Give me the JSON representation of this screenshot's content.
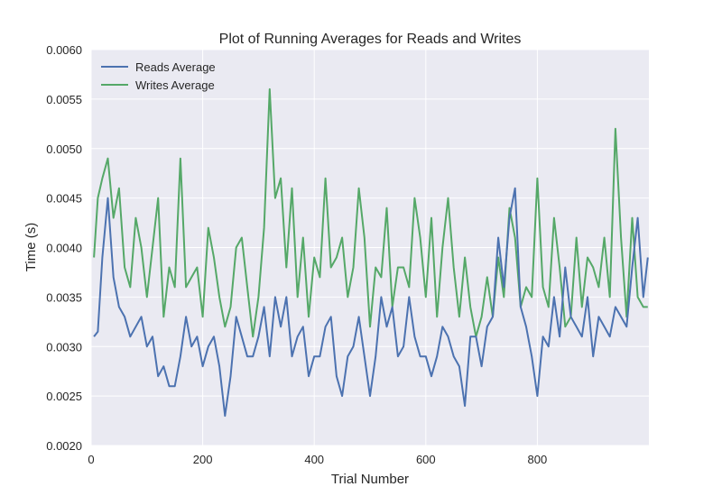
{
  "chart_data": {
    "type": "line",
    "title": "Plot of Running Averages for Reads and Writes",
    "xlabel": "Trial Number",
    "ylabel": "Time (s)",
    "xlim": [
      0,
      1000
    ],
    "ylim": [
      0.002,
      0.006
    ],
    "x_ticks": [
      0,
      200,
      400,
      600,
      800
    ],
    "y_ticks": [
      0.002,
      0.0025,
      0.003,
      0.0035,
      0.004,
      0.0045,
      0.005,
      0.0055,
      0.006
    ],
    "x_tick_labels": [
      "0",
      "200",
      "400",
      "600",
      "800"
    ],
    "y_tick_labels": [
      "0.0020",
      "0.0025",
      "0.0030",
      "0.0035",
      "0.0040",
      "0.0045",
      "0.0050",
      "0.0055",
      "0.0060"
    ],
    "grid": true,
    "background": "#EAEAF2",
    "legend_position": "top-left",
    "series": [
      {
        "name": "Reads Average",
        "color": "#4C72B0",
        "x": [
          5,
          12,
          20,
          30,
          40,
          50,
          60,
          70,
          80,
          90,
          100,
          110,
          120,
          130,
          140,
          150,
          160,
          170,
          180,
          190,
          200,
          210,
          220,
          230,
          240,
          250,
          260,
          270,
          280,
          290,
          300,
          310,
          320,
          330,
          340,
          350,
          360,
          370,
          380,
          390,
          400,
          410,
          420,
          430,
          440,
          450,
          460,
          470,
          480,
          490,
          500,
          510,
          520,
          530,
          540,
          550,
          560,
          570,
          580,
          590,
          600,
          610,
          620,
          630,
          640,
          650,
          660,
          670,
          680,
          690,
          700,
          710,
          720,
          730,
          740,
          750,
          760,
          770,
          780,
          790,
          800,
          810,
          820,
          830,
          840,
          850,
          860,
          870,
          880,
          890,
          900,
          910,
          920,
          930,
          940,
          950,
          960,
          970,
          980,
          990,
          998
        ],
        "values": [
          0.0031,
          0.00315,
          0.0039,
          0.0045,
          0.0037,
          0.0034,
          0.0033,
          0.0031,
          0.0032,
          0.0033,
          0.003,
          0.0031,
          0.0027,
          0.0028,
          0.0026,
          0.0026,
          0.0029,
          0.0033,
          0.003,
          0.0031,
          0.0028,
          0.003,
          0.0031,
          0.0028,
          0.0023,
          0.0027,
          0.0033,
          0.0031,
          0.0029,
          0.0029,
          0.0031,
          0.0034,
          0.0029,
          0.0035,
          0.0032,
          0.0035,
          0.0029,
          0.0031,
          0.0032,
          0.0027,
          0.0029,
          0.0029,
          0.0032,
          0.0033,
          0.0027,
          0.0025,
          0.0029,
          0.003,
          0.0033,
          0.0029,
          0.0025,
          0.0029,
          0.0035,
          0.0032,
          0.0034,
          0.0029,
          0.003,
          0.0035,
          0.0031,
          0.0029,
          0.0029,
          0.0027,
          0.0029,
          0.0032,
          0.0031,
          0.0029,
          0.0028,
          0.0024,
          0.0031,
          0.0031,
          0.0028,
          0.0032,
          0.0033,
          0.0041,
          0.0036,
          0.0043,
          0.0046,
          0.0034,
          0.0032,
          0.0029,
          0.0025,
          0.0031,
          0.003,
          0.0035,
          0.0031,
          0.0038,
          0.0033,
          0.0032,
          0.0031,
          0.0035,
          0.0029,
          0.0033,
          0.0032,
          0.0031,
          0.0034,
          0.0033,
          0.0032,
          0.0038,
          0.0043,
          0.0035,
          0.0039
        ]
      },
      {
        "name": "Writes Average",
        "color": "#55A868",
        "x": [
          5,
          12,
          20,
          30,
          40,
          50,
          60,
          70,
          80,
          90,
          100,
          110,
          120,
          130,
          140,
          150,
          160,
          170,
          180,
          190,
          200,
          210,
          220,
          230,
          240,
          250,
          260,
          270,
          280,
          290,
          300,
          310,
          320,
          330,
          340,
          350,
          360,
          370,
          380,
          390,
          400,
          410,
          420,
          430,
          440,
          450,
          460,
          470,
          480,
          490,
          500,
          510,
          520,
          530,
          540,
          550,
          560,
          570,
          580,
          590,
          600,
          610,
          620,
          630,
          640,
          650,
          660,
          670,
          680,
          690,
          700,
          710,
          720,
          730,
          740,
          750,
          760,
          770,
          780,
          790,
          800,
          810,
          820,
          830,
          840,
          850,
          860,
          870,
          880,
          890,
          900,
          910,
          920,
          930,
          940,
          950,
          960,
          970,
          980,
          990,
          998
        ],
        "values": [
          0.0039,
          0.0045,
          0.0047,
          0.0049,
          0.0043,
          0.0046,
          0.0038,
          0.0036,
          0.0043,
          0.004,
          0.0035,
          0.004,
          0.0045,
          0.0033,
          0.0038,
          0.0036,
          0.0049,
          0.0036,
          0.0037,
          0.0038,
          0.0033,
          0.0042,
          0.0039,
          0.0035,
          0.0032,
          0.0034,
          0.004,
          0.0041,
          0.0036,
          0.0031,
          0.0035,
          0.0042,
          0.0056,
          0.0045,
          0.0047,
          0.0038,
          0.0046,
          0.0035,
          0.0041,
          0.0033,
          0.0039,
          0.0037,
          0.0047,
          0.0038,
          0.0039,
          0.0041,
          0.0035,
          0.0038,
          0.0046,
          0.0041,
          0.0032,
          0.0038,
          0.0037,
          0.0044,
          0.0034,
          0.0038,
          0.0038,
          0.0036,
          0.0045,
          0.0041,
          0.0035,
          0.0043,
          0.0033,
          0.004,
          0.0045,
          0.0038,
          0.0033,
          0.0039,
          0.0034,
          0.0031,
          0.0033,
          0.0037,
          0.0033,
          0.0039,
          0.0035,
          0.0044,
          0.0041,
          0.0034,
          0.0036,
          0.0035,
          0.0047,
          0.0036,
          0.0034,
          0.0043,
          0.0038,
          0.0032,
          0.0033,
          0.0041,
          0.0034,
          0.0039,
          0.0038,
          0.0036,
          0.0041,
          0.0035,
          0.0052,
          0.0041,
          0.0033,
          0.0043,
          0.0035,
          0.0034,
          0.0034
        ]
      }
    ]
  }
}
